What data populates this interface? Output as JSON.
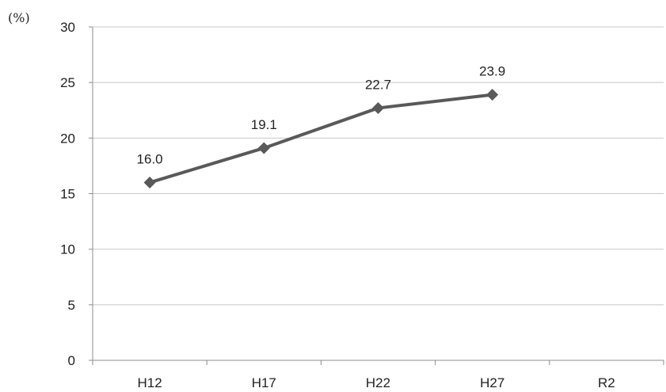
{
  "chart_data": {
    "type": "line",
    "ylabel": "(%)",
    "categories": [
      "H12",
      "H17",
      "H22",
      "H27",
      "R2"
    ],
    "series": [
      {
        "values": [
          16.0,
          19.1,
          22.7,
          23.9,
          null
        ],
        "data_labels": [
          "16.0",
          "19.1",
          "22.7",
          "23.9",
          null
        ],
        "color": "#595959"
      }
    ],
    "ylim": [
      0,
      30
    ],
    "yticks": [
      0,
      5,
      10,
      15,
      20,
      25,
      30
    ],
    "grid": true,
    "gridline_color": "#c8c8c8",
    "axis_color": "#8c8c8c",
    "marker": "diamond",
    "legend": "none"
  }
}
